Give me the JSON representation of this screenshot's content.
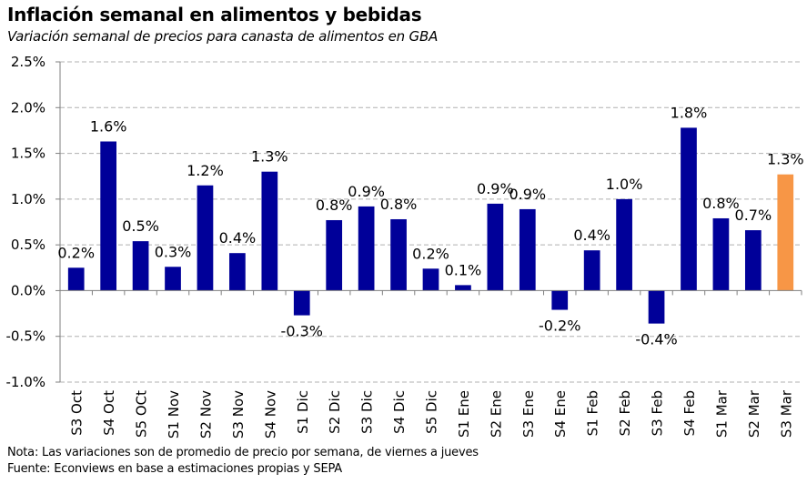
{
  "chart_data": {
    "type": "bar",
    "title": "Inflación semanal en alimentos y bebidas",
    "subtitle": "Variación semanal de precios para canasta de alimentos en GBA",
    "xlabel": "",
    "ylabel": "",
    "ylim": [
      -1.0,
      2.5
    ],
    "yticks": [
      "2.5%",
      "2.0%",
      "1.5%",
      "1.0%",
      "0.5%",
      "0.0%",
      "-0.5%",
      "-1.0%"
    ],
    "ytick_values": [
      2.5,
      2.0,
      1.5,
      1.0,
      0.5,
      0.0,
      -0.5,
      -1.0
    ],
    "grid": true,
    "categories": [
      "S3 Oct",
      "S4 Oct",
      "S5 OCt",
      "S1 Nov",
      "S2 Nov",
      "S3 Nov",
      "S4 Nov",
      "S1 Dic",
      "S2 Dic",
      "S3 Dic",
      "S4 Dic",
      "S5 Dic",
      "S1 Ene",
      "S2 Ene",
      "S3 Ene",
      "S4 Ene",
      "S1 Feb",
      "S2 Feb",
      "S3 Feb",
      "S4 Feb",
      "S1 Mar",
      "S2 Mar",
      "S3 Mar"
    ],
    "values": [
      0.25,
      1.63,
      0.54,
      0.26,
      1.15,
      0.41,
      1.3,
      -0.27,
      0.77,
      0.92,
      0.78,
      0.24,
      0.06,
      0.95,
      0.89,
      -0.21,
      0.44,
      1.0,
      -0.36,
      1.78,
      0.79,
      0.66,
      1.27
    ],
    "labels": [
      "0.2%",
      "1.6%",
      "0.5%",
      "0.3%",
      "1.2%",
      "0.4%",
      "1.3%",
      "-0.3%",
      "0.8%",
      "0.9%",
      "0.8%",
      "0.2%",
      "0.1%",
      "0.9%",
      "0.9%",
      "-0.2%",
      "0.4%",
      "1.0%",
      "-0.4%",
      "1.8%",
      "0.8%",
      "0.7%",
      "1.3%"
    ],
    "colors": {
      "default": "#000099",
      "highlight": "#F79646",
      "grid": "#B0B0B0",
      "axis": "#7F7F7F"
    },
    "highlight_index": 22
  },
  "notes": {
    "line1": "Nota: Las variaciones son de promedio de precio por semana, de viernes a jueves",
    "line2": "Fuente: Econviews en base a estimaciones propias y SEPA"
  }
}
